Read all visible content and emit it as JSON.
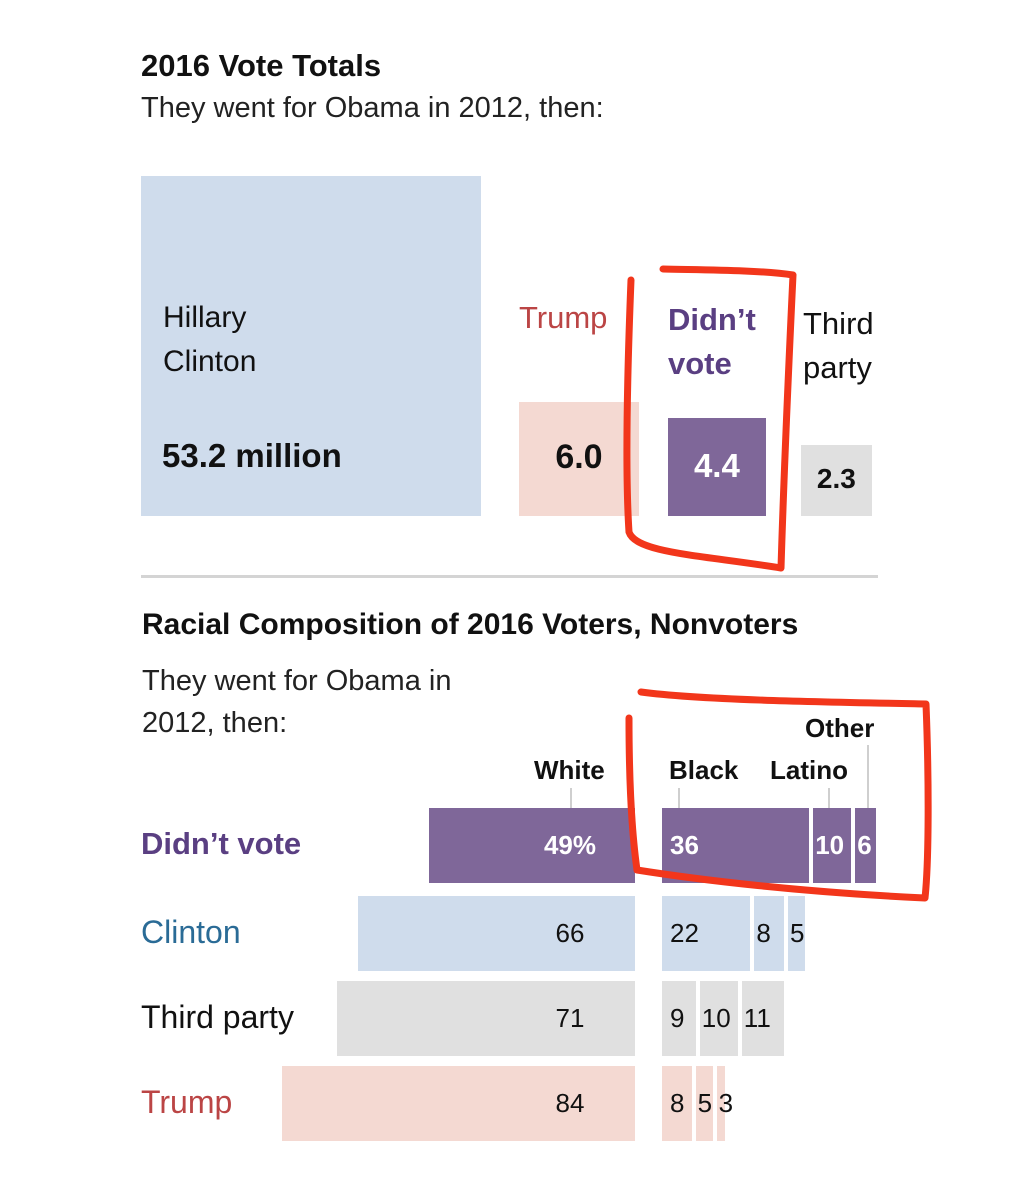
{
  "section1": {
    "title": "2016 Vote Totals",
    "subtitle": "They went for Obama in 2012, then:"
  },
  "section2": {
    "title": "Racial Composition of 2016 Voters, Nonvoters",
    "subtitle": "They went for Obama in 2012, then:"
  },
  "colors": {
    "clinton": "#cfdcec",
    "trump": "#f4d9d2",
    "didnt_vote": "#7f6799",
    "third_party": "#e0e0e0",
    "clinton_text": "#2a6b96",
    "trump_text": "#bb4545",
    "didnt_vote_text": "#5a3f82",
    "annotation": "#f2361b"
  },
  "chart_data": [
    {
      "type": "area",
      "title": "2016 Vote Totals",
      "subtitle": "They went for Obama in 2012, then:",
      "unit": "million votes",
      "categories": [
        {
          "key": "clinton",
          "name": "Hillary Clinton",
          "value": 53.2,
          "label": "53.2 million"
        },
        {
          "key": "trump",
          "name": "Trump",
          "value": 6.0,
          "label": "6.0"
        },
        {
          "key": "didnt_vote",
          "name": "Didn’t vote",
          "value": 4.4,
          "label": "4.4"
        },
        {
          "key": "third_party",
          "name": "Third party",
          "value": 2.3,
          "label": "2.3"
        }
      ]
    },
    {
      "type": "bar",
      "title": "Racial Composition of 2016 Voters, Nonvoters",
      "subtitle": "They went for Obama in 2012, then:",
      "unit": "percent",
      "series_names": [
        "White",
        "Black",
        "Latino",
        "Other"
      ],
      "rows": [
        {
          "key": "didnt_vote",
          "name": "Didn’t vote",
          "values": [
            49,
            36,
            10,
            6
          ],
          "labels": [
            "49%",
            "36",
            "10",
            "6"
          ]
        },
        {
          "key": "clinton",
          "name": "Clinton",
          "values": [
            66,
            22,
            8,
            5
          ],
          "labels": [
            "66",
            "22",
            "8",
            "5"
          ]
        },
        {
          "key": "third_party",
          "name": "Third party",
          "values": [
            71,
            9,
            10,
            11
          ],
          "labels": [
            "71",
            "9",
            "10",
            "11"
          ]
        },
        {
          "key": "trump",
          "name": "Trump",
          "values": [
            84,
            8,
            5,
            3
          ],
          "labels": [
            "84",
            "8",
            "5",
            "3"
          ]
        }
      ]
    }
  ]
}
